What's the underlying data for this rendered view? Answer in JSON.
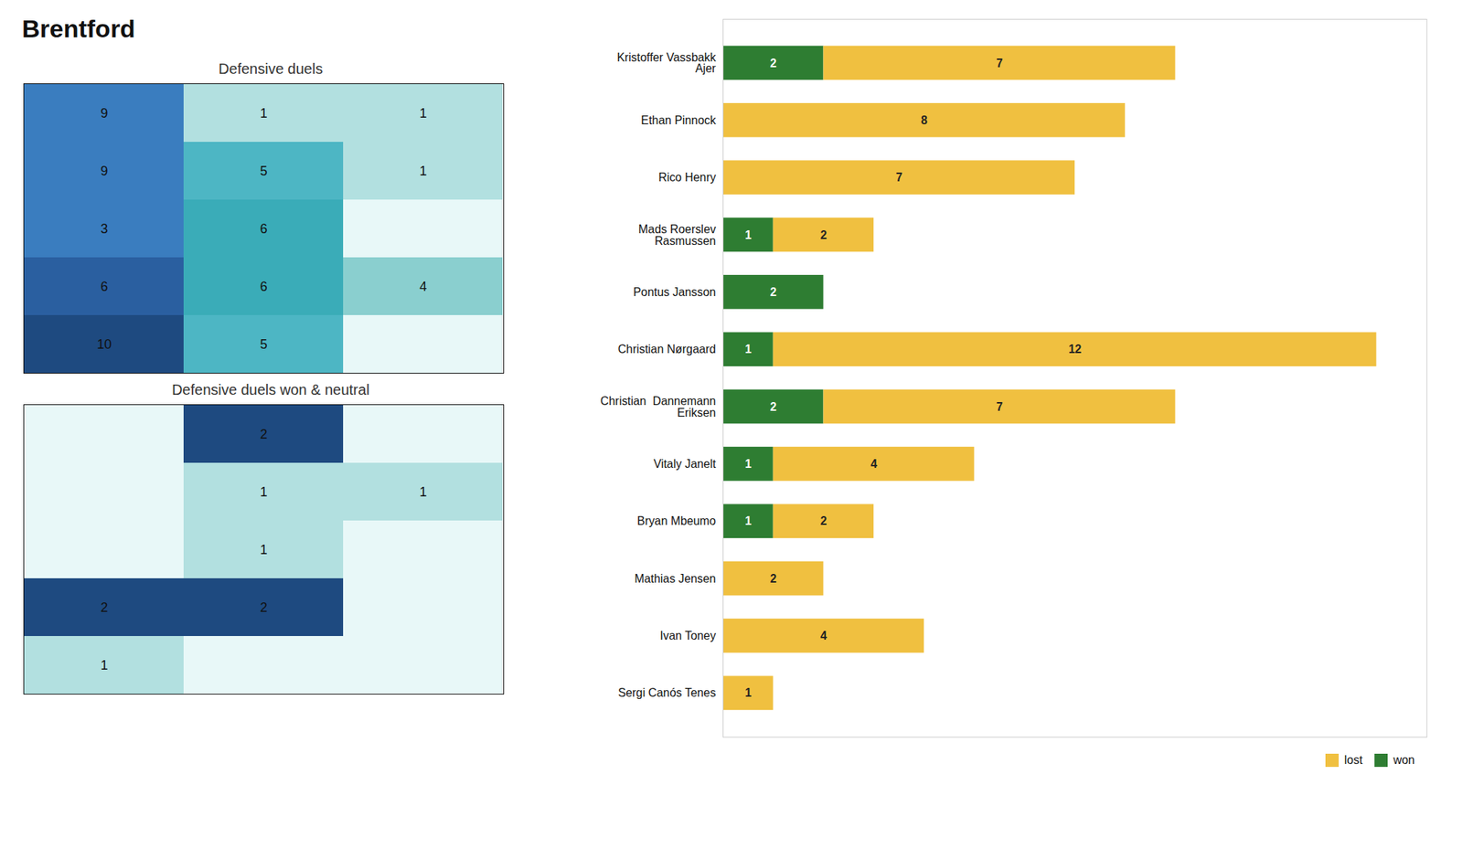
{
  "title": "Brentford",
  "chart_data": [
    {
      "type": "heatmap",
      "title": "Defensive duels",
      "values": [
        [
          9,
          1,
          1
        ],
        [
          9,
          5,
          1
        ],
        [
          3,
          6,
          0
        ],
        [
          6,
          6,
          4
        ],
        [
          10,
          5,
          0
        ]
      ],
      "value_labels": [
        [
          "9",
          "1",
          "1"
        ],
        [
          "9",
          "5",
          "1"
        ],
        [
          "3",
          "6",
          null
        ],
        [
          "6",
          "6",
          "4"
        ],
        [
          "10",
          "5",
          null
        ]
      ],
      "colors": [
        [
          "#3a7dbf",
          "#b2e0e0",
          "#b2e0e0"
        ],
        [
          "#3a7dbf",
          "#4db6c4",
          "#b2e0e0"
        ],
        [
          "#3a7dbf",
          "#3aacb8",
          "#e8f8f8"
        ],
        [
          "#2a5fa0",
          "#3aacb8",
          "#8acfcf"
        ],
        [
          "#1e4a80",
          "#4db6c4",
          "#e8f8f8"
        ]
      ],
      "data_labels": true,
      "tick_labels": false
    },
    {
      "type": "heatmap",
      "title": "Defensive duels won & neutral",
      "values": [
        [
          0,
          2,
          0
        ],
        [
          0,
          1,
          1
        ],
        [
          0,
          1,
          0
        ],
        [
          2,
          2,
          0
        ],
        [
          1,
          0,
          0
        ]
      ],
      "value_labels": [
        [
          null,
          "2",
          null
        ],
        [
          null,
          "1",
          "1"
        ],
        [
          null,
          "1",
          null
        ],
        [
          "2",
          "2",
          null
        ],
        [
          "1",
          null,
          null
        ]
      ],
      "colors": [
        [
          "#e8f8f8",
          "#1e4a80",
          "#e8f8f8"
        ],
        [
          "#e8f8f8",
          "#b2e0e0",
          "#b2e0e0"
        ],
        [
          "#e8f8f8",
          "#b2e0e0",
          "#e8f8f8"
        ],
        [
          "#1e4a80",
          "#1e4a80",
          "#e8f8f8"
        ],
        [
          "#b2e0e0",
          "#e8f8f8",
          "#e8f8f8"
        ]
      ],
      "data_labels": true,
      "tick_labels": false
    },
    {
      "type": "bar",
      "orientation": "horizontal",
      "stacked": true,
      "categories": [
        "Kristoffer Vassbakk\nAjer",
        "Ethan Pinnock",
        "Rico Henry",
        "Mads Roerslev\nRasmussen",
        "Pontus Jansson",
        "Christian Nørgaard",
        "Christian  Dannemann\nEriksen",
        "Vitaly Janelt",
        "Bryan Mbeumo",
        "Mathias Jensen",
        "Ivan Toney",
        "Sergi Canós Tenes"
      ],
      "series": [
        {
          "name": "won",
          "color": "#2e7d32",
          "values": [
            2,
            0,
            0,
            1,
            2,
            1,
            2,
            1,
            1,
            0,
            0,
            0
          ],
          "value_labels": [
            "2",
            null,
            null,
            "1",
            "2",
            "1",
            "2",
            "1",
            "1",
            null,
            null,
            null
          ]
        },
        {
          "name": "lost",
          "color": "#f0c040",
          "values": [
            7,
            8,
            7,
            2,
            0,
            12,
            7,
            4,
            2,
            2,
            4,
            1
          ],
          "value_labels": [
            "7",
            "8",
            "7",
            "2",
            null,
            "12",
            "7",
            "4",
            "2",
            "2",
            "4",
            "1"
          ]
        }
      ],
      "xlim": [
        0,
        14
      ],
      "data_labels": true,
      "tick_labels": "y",
      "legend": "lower right"
    }
  ]
}
